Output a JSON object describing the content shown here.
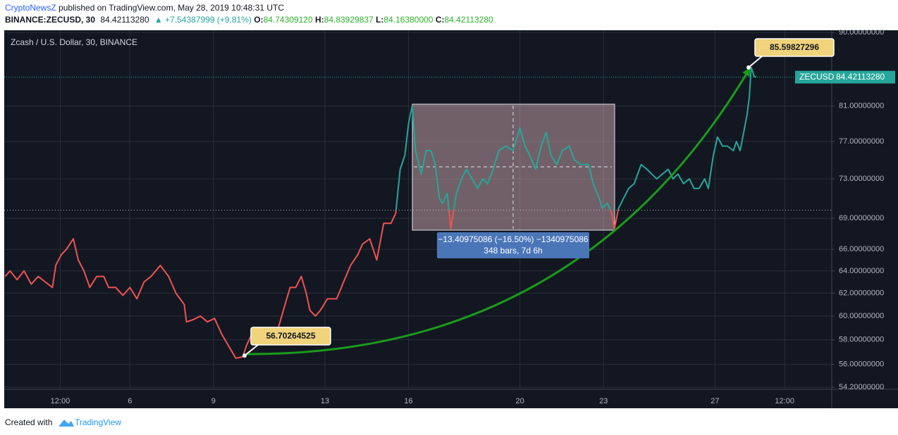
{
  "header": {
    "author": "CryptoNewsZ",
    "published": " published on TradingView.com, May 28, 2019 10:48:31 UTC",
    "symbol": "BINANCE:ZECUSD, 30",
    "last": "84.42113280",
    "change": "▲ +7.54387999 (+9.81%)",
    "open_label": "O:",
    "open": "84.74309120",
    "high_label": "H:",
    "high": "84.83929837",
    "low_label": "L:",
    "low": "84.16380000",
    "close_label": "C:",
    "close": "84.42113280"
  },
  "footer": {
    "created": "Created with",
    "brand": "TradingView"
  },
  "chart_data": {
    "type": "line",
    "title": "Zcash / U.S. Dollar, 30, BINANCE",
    "x": [
      1.52,
      1.7,
      1.95,
      2.2,
      2.46,
      2.71,
      2.96,
      3.22,
      3.34,
      3.54,
      3.72,
      3.97,
      4.15,
      4.35,
      4.56,
      4.81,
      5.06,
      5.24,
      5.49,
      5.75,
      6.0,
      6.25,
      6.51,
      6.76,
      7.09,
      7.39,
      7.65,
      7.95,
      8.03,
      8.28,
      8.53,
      8.78,
      9.04,
      9.29,
      9.54,
      9.8,
      10.05,
      10.18,
      10.38,
      10.63,
      10.89,
      11.19,
      11.39,
      11.57,
      11.75,
      11.95,
      12.15,
      12.33,
      12.46,
      12.66,
      12.84,
      13.09,
      13.42,
      13.67,
      13.92,
      14.18,
      14.35,
      14.61,
      14.86,
      15.11,
      15.37,
      15.54,
      15.7,
      15.87,
      16.0,
      16.13,
      16.25,
      16.46,
      16.63,
      16.81,
      16.96,
      17.11,
      17.22,
      17.39,
      17.52,
      17.72,
      17.9,
      18.08,
      18.28,
      18.48,
      18.66,
      18.84,
      19.04,
      19.24,
      19.49,
      19.75,
      20.0,
      20.18,
      20.35,
      20.56,
      20.76,
      20.94,
      21.11,
      21.32,
      21.52,
      21.77,
      21.95,
      22.2,
      22.46,
      22.63,
      22.84,
      22.96,
      23.14,
      23.29,
      23.39,
      23.54,
      23.72,
      23.9,
      24.1,
      24.35,
      24.56,
      24.73,
      24.91,
      25.11,
      25.32,
      25.49,
      25.67,
      25.87,
      26.08,
      26.25,
      26.43,
      26.63,
      26.76,
      26.94,
      27.09,
      27.27,
      27.44,
      27.66,
      27.77,
      27.9,
      28.03,
      28.15,
      28.23,
      28.3,
      28.41,
      28.48
    ],
    "values": [
      63.5,
      64,
      63.2,
      64,
      62.8,
      63.5,
      63,
      62.5,
      64.5,
      65.5,
      66,
      67,
      65,
      64,
      62.5,
      63.5,
      63.5,
      62.5,
      62.5,
      61.8,
      62.5,
      61.5,
      63,
      63.5,
      64.5,
      63.5,
      62,
      61,
      59.5,
      59.7,
      60,
      59.5,
      59.8,
      58.5,
      57.5,
      56.5,
      56.6,
      57.5,
      58.5,
      58,
      58.2,
      58,
      59.5,
      61,
      62.5,
      62.5,
      63.5,
      62,
      60.5,
      60,
      60.5,
      61.5,
      61.5,
      63,
      64.5,
      65.5,
      66.5,
      67,
      65,
      68.5,
      68.5,
      69.5,
      74,
      75.5,
      79,
      81,
      76,
      73.5,
      76,
      76,
      74.5,
      71,
      70.5,
      71.5,
      68,
      71.5,
      73,
      74,
      73,
      72,
      73,
      72.5,
      74,
      76,
      76.5,
      76,
      78.5,
      76.5,
      75.5,
      74,
      76.5,
      78,
      75.5,
      74.5,
      76,
      76.5,
      75,
      74.5,
      74.5,
      72.5,
      71,
      70,
      70.5,
      69.5,
      68,
      70,
      71,
      72,
      72.5,
      74.5,
      74,
      73.5,
      73,
      73.5,
      74,
      73,
      73.5,
      72.5,
      73,
      72,
      72,
      73,
      72,
      75.5,
      77.5,
      76.5,
      76.5,
      76,
      77,
      76,
      78,
      80,
      82,
      85.6,
      84.5,
      84.42
    ],
    "up_color": "#26a69a",
    "down_color": "#ef5350",
    "baseline": 69.8,
    "log": true,
    "grid": true,
    "xlim": [
      1.49,
      31.19
    ],
    "xticks": [
      {
        "value": 3.5,
        "label": "12:00"
      },
      6,
      9,
      13,
      16,
      20,
      23,
      27,
      {
        "value": 29.5,
        "label": "12:00"
      }
    ],
    "ylim": [
      54.04,
      90.27
    ],
    "yticks": [
      {
        "value": 54.2,
        "label": "54.20000000"
      },
      {
        "value": 56,
        "label": "56.00000000"
      },
      {
        "value": 58,
        "label": "58.00000000"
      },
      {
        "value": 60,
        "label": "60.00000000"
      },
      {
        "value": 62,
        "label": "62.00000000"
      },
      {
        "value": 64,
        "label": "64.00000000"
      },
      {
        "value": 66,
        "label": "66.00000000"
      },
      {
        "value": 69,
        "label": "69.00000000"
      },
      {
        "value": 73,
        "label": "73.00000000"
      },
      {
        "value": 77,
        "label": "77.00000000"
      },
      {
        "value": 81,
        "label": "81.00000000"
      },
      {
        "value": 90,
        "label": "90.00000000"
      }
    ],
    "last_price": {
      "symbol": "ZECUSD",
      "value": 84.4211328,
      "label": "84.42113280"
    },
    "annotations": [
      {
        "value": 85.59827296,
        "label": "85.59827296"
      },
      {
        "value": 56.70264525,
        "label": "56.70264525"
      }
    ],
    "measure": {
      "change": "−13.40975086 (−16.50%) −1340975086",
      "bars": "348 bars, 7d 6h"
    }
  }
}
